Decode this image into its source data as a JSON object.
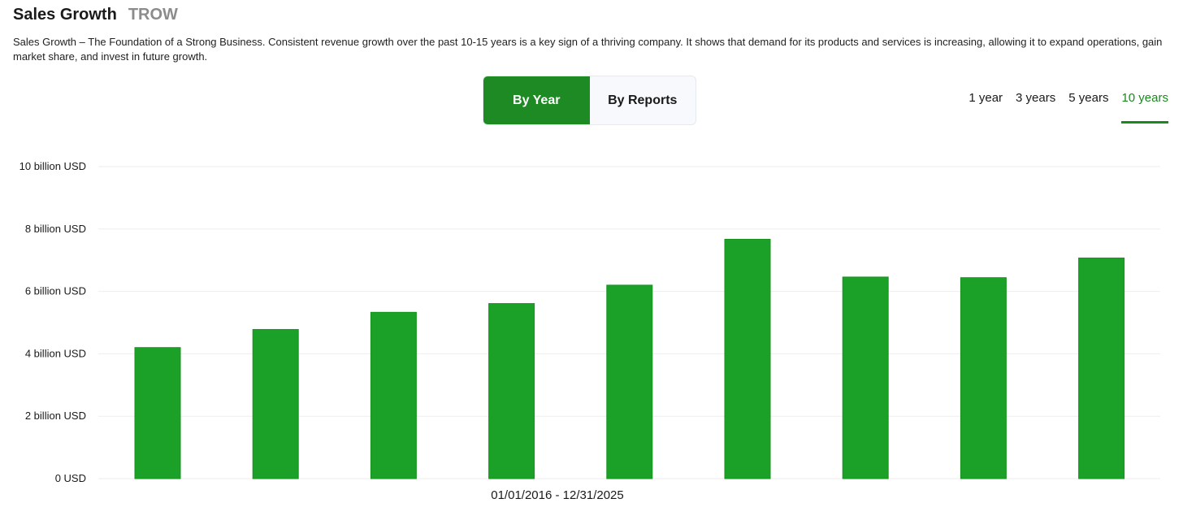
{
  "header": {
    "title": "Sales Growth",
    "ticker": "TROW"
  },
  "description": "Sales Growth – The Foundation of a Strong Business. Consistent revenue growth over the past 10-15 years is a key sign of a thriving company. It shows that demand for its products and services is increasing, allowing it to expand operations, gain market share, and invest in future growth.",
  "toggle": {
    "by_year": "By Year",
    "by_reports": "By Reports",
    "active": "by_year"
  },
  "periods": [
    "1 year",
    "3 years",
    "5 years",
    "10 years"
  ],
  "active_period": "10 years",
  "colors": {
    "accent": "#1e8a23",
    "bar": "#1ba127",
    "grid": "#eeeeee"
  },
  "chart_data": {
    "type": "bar",
    "xlabel": "01/01/2016 - 12/31/2025",
    "ylim": [
      0,
      10
    ],
    "yticks": [
      {
        "value": 0,
        "label": "0 USD"
      },
      {
        "value": 2,
        "label": "2 billion USD"
      },
      {
        "value": 4,
        "label": "4 billion USD"
      },
      {
        "value": 6,
        "label": "6 billion USD"
      },
      {
        "value": 8,
        "label": "8 billion USD"
      },
      {
        "value": 10,
        "label": "10 billion USD"
      }
    ],
    "grid": true,
    "values": [
      4.2,
      4.78,
      5.33,
      5.61,
      6.2,
      7.67,
      6.46,
      6.44,
      7.07
    ]
  }
}
